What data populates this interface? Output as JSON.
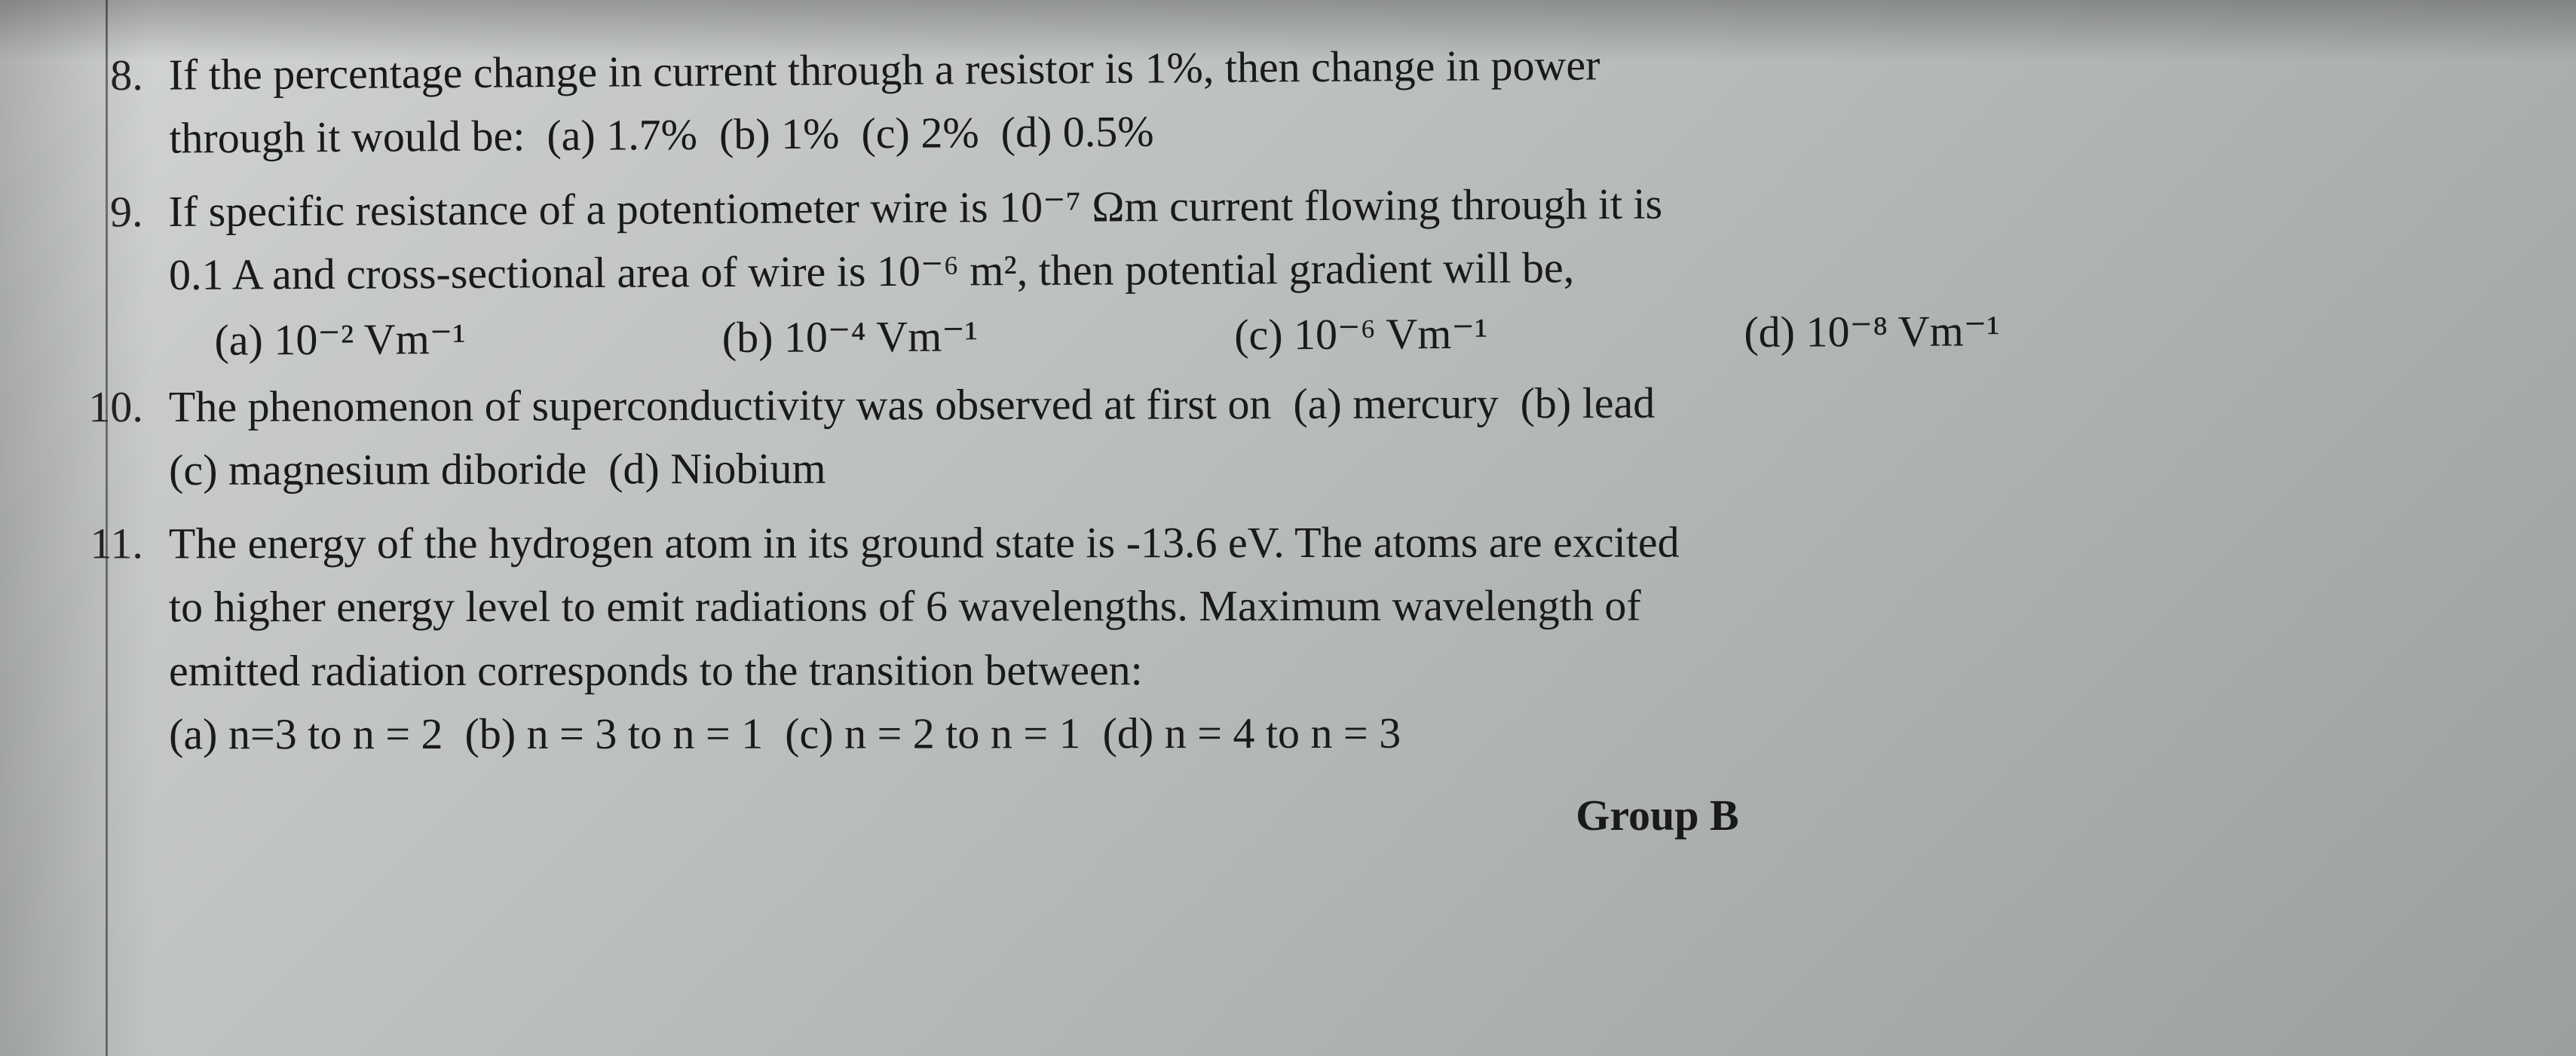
{
  "background_color": "#bcc0bd",
  "text_color": "#1a1a1a",
  "font_family": "Times New Roman",
  "font_size_pt": 58,
  "questions": [
    {
      "number": "8.",
      "line1": "If the percentage change in current through a resistor is 1%, then change in power",
      "line2_prefix": "through it would be:",
      "options": {
        "a": "(a) 1.7%",
        "b": "(b) 1%",
        "c": "(c) 2%",
        "d": "(d) 0.5%"
      }
    },
    {
      "number": "9.",
      "line1": "If specific resistance of a potentiometer wire is 10⁻⁷ Ωm current flowing through it is",
      "line2": "0.1 A and cross-sectional area of wire is 10⁻⁶ m², then potential gradient will be,",
      "options": {
        "a": "(a) 10⁻² Vm⁻¹",
        "b": "(b) 10⁻⁴ Vm⁻¹",
        "c": "(c) 10⁻⁶  Vm⁻¹",
        "d": "(d) 10⁻⁸ Vm⁻¹"
      }
    },
    {
      "number": "10.",
      "line1_prefix": "The phenomenon of superconductivity was observed at first on",
      "opts_line1": {
        "a": "(a) mercury",
        "b": "(b) lead"
      },
      "opts_line2": {
        "c": "(c) magnesium diboride",
        "d": "(d) Niobium"
      }
    },
    {
      "number": "11.",
      "line1": "The energy of the hydrogen atom in its ground state is -13.6 eV. The atoms are excited",
      "line2": "to higher energy level to emit radiations of 6 wavelengths. Maximum wavelength of",
      "line3": "emitted radiation corresponds to the transition between:",
      "options": {
        "a": "(a) n=3 to n = 2",
        "b": "(b) n = 3 to n = 1",
        "c": "(c) n = 2 to n = 1",
        "d": "(d) n = 4 to n = 3"
      }
    }
  ],
  "footer": "Group B"
}
